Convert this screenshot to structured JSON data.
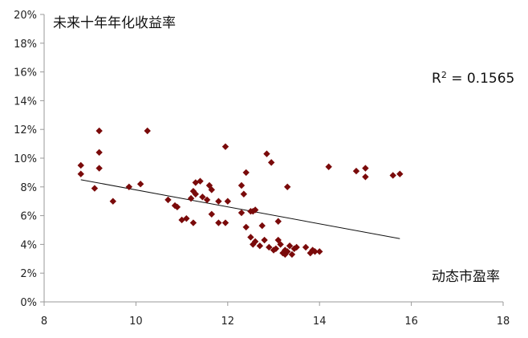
{
  "chart_data": {
    "type": "scatter",
    "title": "",
    "xlabel": "动态市盈率",
    "ylabel": "未来十年年化收益率",
    "xlim": [
      8,
      18
    ],
    "ylim": [
      0,
      0.2
    ],
    "x_ticks": [
      "8",
      "10",
      "12",
      "14",
      "16",
      "18"
    ],
    "y_ticks": [
      "0%",
      "2%",
      "4%",
      "6%",
      "8%",
      "10%",
      "12%",
      "14%",
      "16%",
      "18%",
      "20%"
    ],
    "grid": false,
    "marker": "diamond",
    "marker_color": "#7a0a0a",
    "annotation": {
      "r_label": "R",
      "r_sup": "2",
      "r_value": " = 0.1565"
    },
    "trendline": {
      "x": [
        8.8,
        15.75
      ],
      "y": [
        0.085,
        0.044
      ]
    },
    "points": [
      {
        "x": 8.8,
        "y": 0.095
      },
      {
        "x": 8.8,
        "y": 0.089
      },
      {
        "x": 9.1,
        "y": 0.079
      },
      {
        "x": 9.2,
        "y": 0.119
      },
      {
        "x": 9.2,
        "y": 0.104
      },
      {
        "x": 9.2,
        "y": 0.093
      },
      {
        "x": 9.5,
        "y": 0.07
      },
      {
        "x": 9.85,
        "y": 0.08
      },
      {
        "x": 10.1,
        "y": 0.082
      },
      {
        "x": 10.25,
        "y": 0.119
      },
      {
        "x": 10.7,
        "y": 0.071
      },
      {
        "x": 10.85,
        "y": 0.067
      },
      {
        "x": 10.9,
        "y": 0.066
      },
      {
        "x": 11.0,
        "y": 0.057
      },
      {
        "x": 11.1,
        "y": 0.058
      },
      {
        "x": 11.2,
        "y": 0.072
      },
      {
        "x": 11.25,
        "y": 0.077
      },
      {
        "x": 11.3,
        "y": 0.083
      },
      {
        "x": 11.3,
        "y": 0.075
      },
      {
        "x": 11.25,
        "y": 0.055
      },
      {
        "x": 11.4,
        "y": 0.084
      },
      {
        "x": 11.45,
        "y": 0.073
      },
      {
        "x": 11.55,
        "y": 0.071
      },
      {
        "x": 11.6,
        "y": 0.081
      },
      {
        "x": 11.65,
        "y": 0.078
      },
      {
        "x": 11.65,
        "y": 0.061
      },
      {
        "x": 11.8,
        "y": 0.07
      },
      {
        "x": 11.8,
        "y": 0.055
      },
      {
        "x": 11.95,
        "y": 0.108
      },
      {
        "x": 11.95,
        "y": 0.055
      },
      {
        "x": 12.0,
        "y": 0.07
      },
      {
        "x": 12.3,
        "y": 0.081
      },
      {
        "x": 12.3,
        "y": 0.062
      },
      {
        "x": 12.35,
        "y": 0.075
      },
      {
        "x": 12.4,
        "y": 0.09
      },
      {
        "x": 12.4,
        "y": 0.052
      },
      {
        "x": 12.5,
        "y": 0.063
      },
      {
        "x": 12.5,
        "y": 0.045
      },
      {
        "x": 12.55,
        "y": 0.063
      },
      {
        "x": 12.55,
        "y": 0.04
      },
      {
        "x": 12.6,
        "y": 0.064
      },
      {
        "x": 12.6,
        "y": 0.042
      },
      {
        "x": 12.7,
        "y": 0.039
      },
      {
        "x": 12.75,
        "y": 0.053
      },
      {
        "x": 12.8,
        "y": 0.043
      },
      {
        "x": 12.85,
        "y": 0.103
      },
      {
        "x": 12.9,
        "y": 0.038
      },
      {
        "x": 12.95,
        "y": 0.097
      },
      {
        "x": 13.0,
        "y": 0.036
      },
      {
        "x": 13.05,
        "y": 0.037
      },
      {
        "x": 13.1,
        "y": 0.043
      },
      {
        "x": 13.1,
        "y": 0.056
      },
      {
        "x": 13.15,
        "y": 0.04
      },
      {
        "x": 13.2,
        "y": 0.034
      },
      {
        "x": 13.25,
        "y": 0.036
      },
      {
        "x": 13.25,
        "y": 0.033
      },
      {
        "x": 13.3,
        "y": 0.08
      },
      {
        "x": 13.3,
        "y": 0.035
      },
      {
        "x": 13.35,
        "y": 0.039
      },
      {
        "x": 13.4,
        "y": 0.033
      },
      {
        "x": 13.45,
        "y": 0.037
      },
      {
        "x": 13.5,
        "y": 0.038
      },
      {
        "x": 13.7,
        "y": 0.038
      },
      {
        "x": 13.8,
        "y": 0.034
      },
      {
        "x": 13.85,
        "y": 0.036
      },
      {
        "x": 13.9,
        "y": 0.035
      },
      {
        "x": 14.0,
        "y": 0.035
      },
      {
        "x": 14.2,
        "y": 0.094
      },
      {
        "x": 14.8,
        "y": 0.091
      },
      {
        "x": 15.0,
        "y": 0.093
      },
      {
        "x": 15.0,
        "y": 0.087
      },
      {
        "x": 15.6,
        "y": 0.088
      },
      {
        "x": 15.75,
        "y": 0.089
      }
    ]
  }
}
